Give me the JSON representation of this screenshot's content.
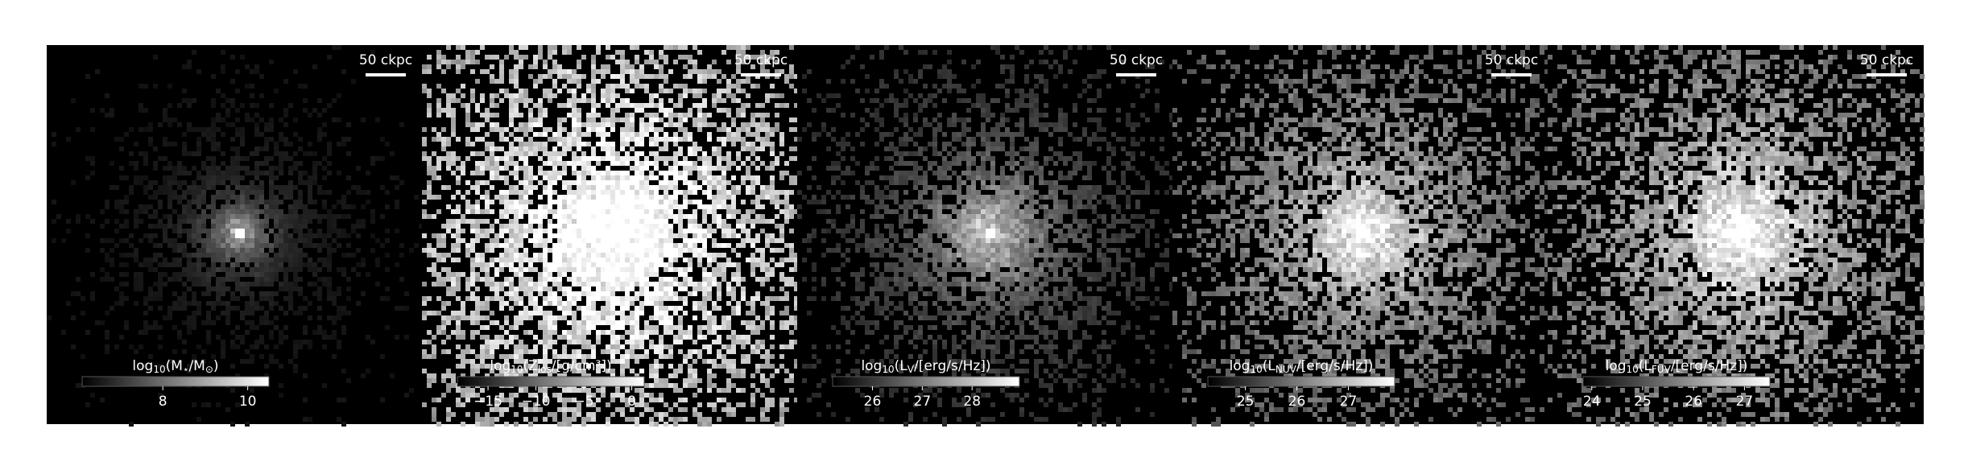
{
  "panels": [
    {
      "scale_label": "50 ckpc",
      "colorbar": {
        "label": [
          "log",
          "10",
          "(M",
          "⋆",
          "/M",
          "⊙",
          ")"
        ],
        "lim": [
          6.1,
          10.5
        ],
        "ticks": [
          8,
          10
        ]
      }
    },
    {
      "scale_label": "50 ckpc",
      "colorbar": {
        "label": [
          "log",
          "10",
          "(Z",
          "los",
          "/[g/cm³])"
        ],
        "lim": [
          -18.2,
          1.3
        ],
        "ticks": [
          {
            "value": -15,
            "label": "−15"
          },
          {
            "value": -10,
            "label": "−10"
          },
          {
            "value": -5,
            "label": "−5"
          },
          0
        ]
      }
    },
    {
      "scale_label": "50 ckpc",
      "colorbar": {
        "label": [
          "log",
          "10",
          "(L",
          "V",
          "/[erg/s/Hz])"
        ],
        "lim": [
          25.2,
          28.95
        ],
        "ticks": [
          26,
          27,
          28
        ]
      }
    },
    {
      "scale_label": "50 ckpc",
      "colorbar": {
        "label": [
          "log",
          "10",
          "(L",
          "NUV",
          "/[erg/s/Hz])"
        ],
        "lim": [
          24.27,
          27.9
        ],
        "ticks": [
          25,
          26,
          27
        ]
      }
    },
    {
      "scale_label": "50 ckpc",
      "colorbar": {
        "label": [
          "log",
          "10",
          "(L",
          "FUV",
          "/[erg/s/Hz])"
        ],
        "lim": [
          23.83,
          27.5
        ],
        "ticks": [
          24,
          25,
          26,
          27
        ]
      }
    }
  ]
}
